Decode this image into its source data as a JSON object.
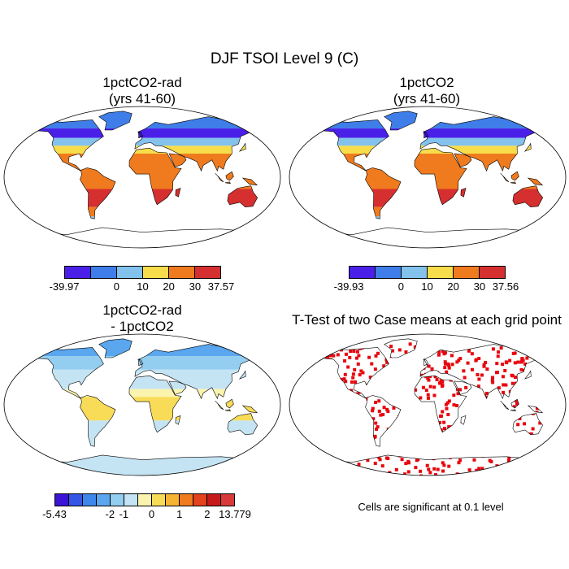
{
  "title": "DJF TSOI Level 9 (C)",
  "panels": [
    {
      "id": "rad",
      "title_lines": [
        "1pctCO2-rad",
        "(yrs 41-60)"
      ],
      "colorbar": {
        "colors": [
          "#4a1fe8",
          "#3f7ee8",
          "#82c2ec",
          "#f7dd4c",
          "#f07b1e",
          "#d52f2f"
        ],
        "tick_labels": [
          "-39.97",
          "0",
          "10",
          "20",
          "30",
          "37.57"
        ]
      }
    },
    {
      "id": "ctrl",
      "title_lines": [
        "1pctCO2",
        "(yrs 41-60)"
      ],
      "colorbar": {
        "colors": [
          "#4a1fe8",
          "#3f7ee8",
          "#82c2ec",
          "#f7dd4c",
          "#f07b1e",
          "#d52f2f"
        ],
        "tick_labels": [
          "-39.93",
          "0",
          "10",
          "20",
          "30",
          "37.56"
        ]
      }
    },
    {
      "id": "diff",
      "title_lines": [
        "1pctCO2-rad",
        "- 1pctCO2"
      ],
      "colorbar": {
        "colors": [
          "#3c14d6",
          "#3356e6",
          "#3d86ec",
          "#5aa6ef",
          "#93cdf0",
          "#c4e4f3",
          "#fbf4ae",
          "#f8dc58",
          "#f6b334",
          "#f07c1e",
          "#e2431c",
          "#c61a1a",
          "#d83a3a"
        ],
        "tick_labels": [
          "-5.43",
          "-2",
          "-1",
          "0",
          "1",
          "2",
          "13.779"
        ]
      }
    },
    {
      "id": "ttest",
      "title_lines": [
        "T-Test of two Case means at each grid point"
      ],
      "note": "Cells are significant at 0.1 level",
      "significance_color": "#e8060f"
    }
  ]
}
